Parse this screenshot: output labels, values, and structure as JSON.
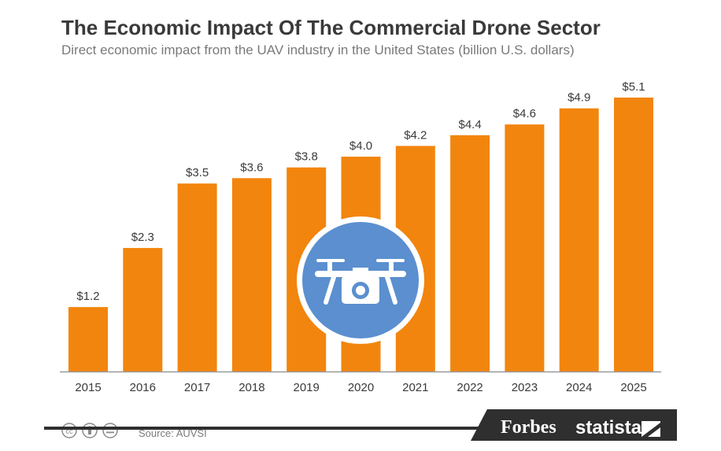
{
  "title": "The Economic Impact Of The Commercial Drone Sector",
  "subtitle": "Direct economic impact from the UAV industry in the United States (billion U.S. dollars)",
  "source": "Source: AUVSI",
  "brands": {
    "forbes": "Forbes",
    "statista": "statista"
  },
  "colors": {
    "bar": "#f2850d",
    "badge": "#5b8fcf",
    "axis": "#9a9a9a",
    "label": "#3a3a3a"
  },
  "icons": [
    "drone-icon",
    "cc-icon",
    "attribution-icon",
    "no-derivatives-icon",
    "statista-logo-icon"
  ],
  "chart_data": {
    "type": "bar",
    "title": "The Economic Impact Of The Commercial Drone Sector",
    "subtitle": "Direct economic impact from the UAV industry in the United States (billion U.S. dollars)",
    "xlabel": "",
    "ylabel": "",
    "categories": [
      "2015",
      "2016",
      "2017",
      "2018",
      "2019",
      "2020",
      "2021",
      "2022",
      "2023",
      "2024",
      "2025"
    ],
    "values": [
      1.2,
      2.3,
      3.5,
      3.6,
      3.8,
      4.0,
      4.2,
      4.4,
      4.6,
      4.9,
      5.1
    ],
    "labels": [
      "$1.2",
      "$2.3",
      "$3.5",
      "$3.6",
      "$3.8",
      "$4.0",
      "$4.2",
      "$4.4",
      "$4.6",
      "$4.9",
      "$5.1"
    ],
    "ylim": [
      0,
      5.1
    ],
    "grid": false,
    "legend": "none"
  }
}
